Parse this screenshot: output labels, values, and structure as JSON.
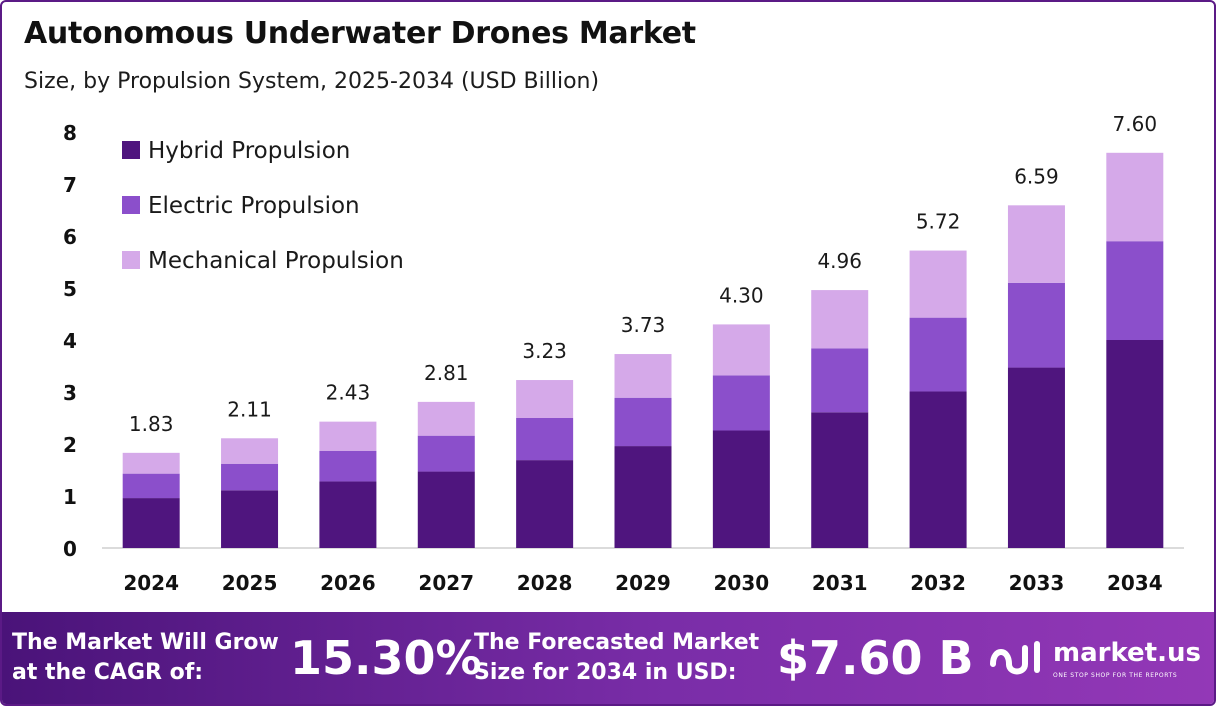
{
  "title": "Autonomous Underwater Drones Market",
  "subtitle": "Size, by Propulsion System, 2025-2034 (USD Billion)",
  "colors": {
    "hybrid": "#4f157e",
    "electric": "#8b4fcb",
    "mechanical": "#d5a9e9",
    "banner_start": "#4a1379",
    "banner_end": "#9338b7"
  },
  "chart_data": {
    "type": "bar",
    "stacked": true,
    "categories": [
      "2024",
      "2025",
      "2026",
      "2027",
      "2028",
      "2029",
      "2030",
      "2031",
      "2032",
      "2033",
      "2034"
    ],
    "series": [
      {
        "name": "Hybrid Propulsion",
        "color": "#4f157e",
        "values": [
          0.96,
          1.11,
          1.28,
          1.47,
          1.69,
          1.96,
          2.26,
          2.61,
          3.01,
          3.47,
          4.0
        ]
      },
      {
        "name": "Electric Propulsion",
        "color": "#8b4fcb",
        "values": [
          0.47,
          0.51,
          0.59,
          0.69,
          0.81,
          0.93,
          1.06,
          1.23,
          1.42,
          1.63,
          1.9
        ]
      },
      {
        "name": "Mechanical Propulsion",
        "color": "#d5a9e9",
        "values": [
          0.4,
          0.49,
          0.56,
          0.65,
          0.73,
          0.84,
          0.98,
          1.12,
          1.29,
          1.49,
          1.7
        ]
      }
    ],
    "totals": [
      "1.83",
      "2.11",
      "2.43",
      "2.81",
      "3.23",
      "3.73",
      "4.30",
      "4.96",
      "5.72",
      "6.59",
      "7.60"
    ],
    "y_ticks": [
      "0",
      "1",
      "2",
      "3",
      "4",
      "5",
      "6",
      "7",
      "8"
    ],
    "ylim": [
      0,
      8
    ],
    "xlabel": "",
    "ylabel": "",
    "grid": false,
    "legend_position": "top-left"
  },
  "banner": {
    "cagr_label": "The Market Will Grow\nat the CAGR of:",
    "cagr_value": "15.30%",
    "forecast_label": "The Forecasted Market\nSize for 2034 in USD:",
    "forecast_value": "$7.60 B",
    "brand_name": "market.us",
    "brand_tagline": "ONE STOP SHOP FOR THE REPORTS",
    "brand_icon": "market-us-logo-icon"
  }
}
